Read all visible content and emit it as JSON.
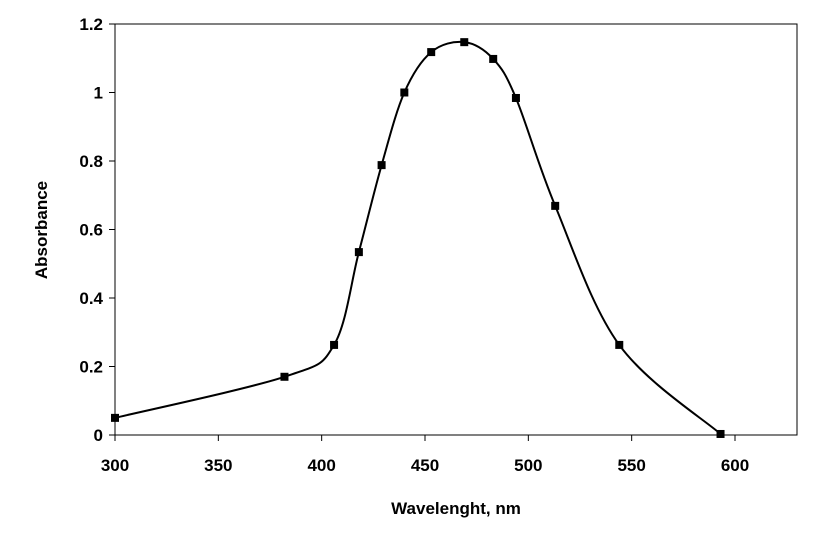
{
  "chart_data": {
    "type": "line",
    "title": "",
    "xlabel": "Wavelenght, nm",
    "ylabel": "Absorbance",
    "xlim": [
      300,
      630
    ],
    "ylim": [
      0,
      1.2
    ],
    "xticks": [
      300,
      350,
      400,
      450,
      500,
      550,
      600
    ],
    "xtick_labels": [
      "300",
      "350",
      "400",
      "450",
      "500",
      "550",
      "600"
    ],
    "yticks": [
      0,
      0.2,
      0.4,
      0.6,
      0.8,
      1,
      1.2
    ],
    "ytick_labels": [
      "0",
      "0.2",
      "0.4",
      "0.6",
      "0.8",
      "1",
      "1.2"
    ],
    "grid": false,
    "legend": "none",
    "series": [
      {
        "name": "Absorbance",
        "color": "#000000",
        "marker": "square",
        "smooth": true,
        "x": [
          300,
          382,
          406,
          418,
          429,
          440,
          453,
          469,
          483,
          494,
          513,
          544,
          593
        ],
        "y": [
          0.05,
          0.17,
          0.263,
          0.534,
          0.788,
          1.0,
          1.118,
          1.147,
          1.098,
          0.984,
          0.669,
          0.263,
          0.003
        ]
      }
    ]
  }
}
